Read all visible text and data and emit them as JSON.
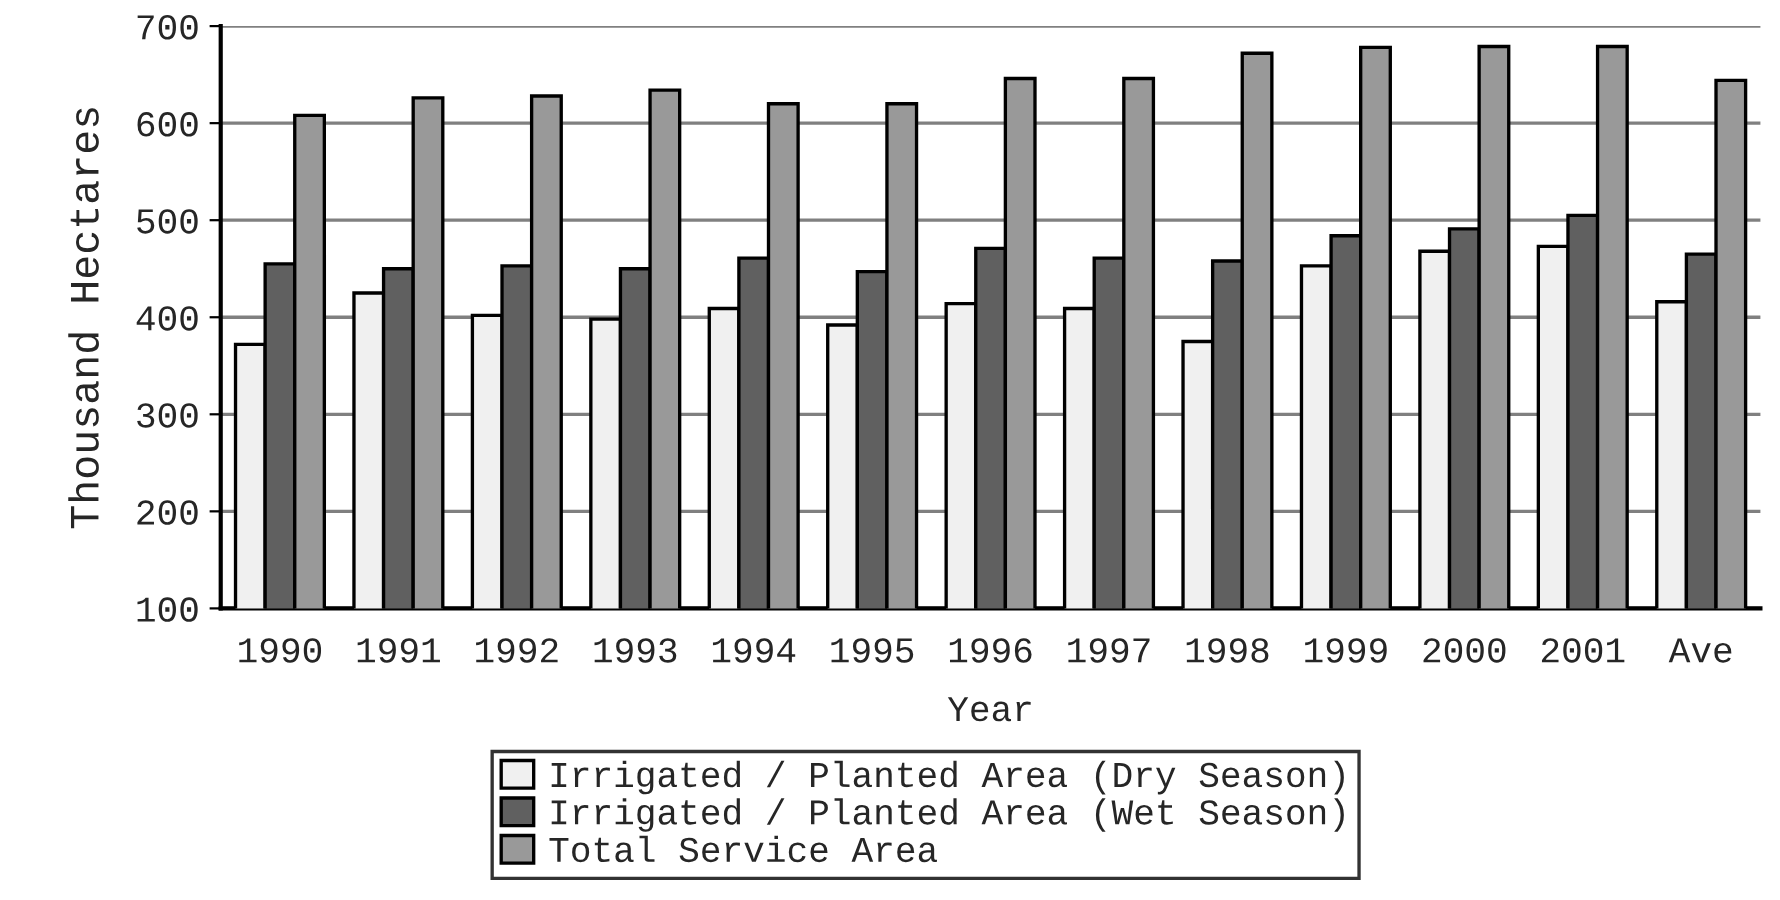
{
  "chart_data": {
    "type": "bar",
    "xlabel": "Year",
    "ylabel": "Thousand Hectares",
    "categories": [
      "1990",
      "1991",
      "1992",
      "1993",
      "1994",
      "1995",
      "1996",
      "1997",
      "1998",
      "1999",
      "2000",
      "2001",
      "Ave"
    ],
    "series": [
      {
        "name": "Irrigated / Planted Area (Dry Season)",
        "color": "#f0f0f0",
        "values": [
          372,
          425,
          402,
          398,
          409,
          392,
          414,
          409,
          375,
          453,
          468,
          473,
          416
        ]
      },
      {
        "name": "Irrigated / Planted Area (Wet Season)",
        "color": "#606060",
        "values": [
          455,
          450,
          453,
          450,
          461,
          447,
          471,
          461,
          458,
          484,
          491,
          505,
          465
        ]
      },
      {
        "name": "Total Service Area",
        "color": "#999999",
        "values": [
          608,
          626,
          628,
          634,
          620,
          620,
          646,
          646,
          672,
          678,
          679,
          679,
          644
        ]
      }
    ],
    "ylim": [
      100,
      700
    ],
    "yticks": [
      100,
      200,
      300,
      400,
      500,
      600,
      700
    ],
    "grid": "y",
    "legend": "bottom"
  }
}
